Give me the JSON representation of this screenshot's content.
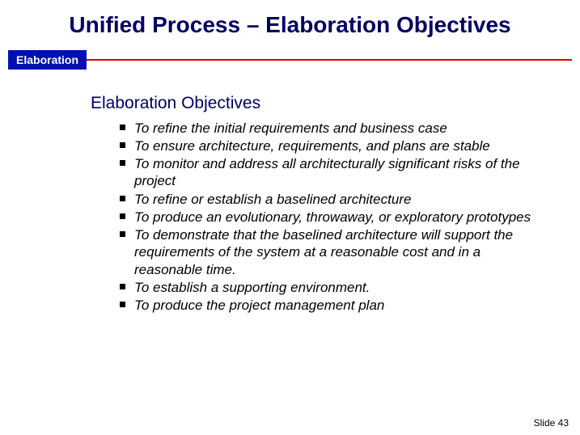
{
  "title": "Unified Process – Elaboration Objectives",
  "section_label": "Elaboration",
  "subtitle": "Elaboration Objectives",
  "objectives": [
    "To refine the initial requirements and business case",
    "To ensure architecture, requirements, and plans are stable",
    "To monitor and address all architecturally significant risks of the project",
    "To refine or establish a baselined architecture",
    "To produce an evolutionary, throwaway, or exploratory prototypes",
    "To demonstrate that the baselined architecture will support the requirements of the system at a reasonable cost and in a reasonable time.",
    "To establish a supporting environment.",
    "To produce the project management plan"
  ],
  "footer": "Slide  43",
  "colors": {
    "title_color": "#000060",
    "section_bg": "#0010b0",
    "section_fg": "#ffffff",
    "accent_line": "#e00000",
    "body_text": "#000000",
    "background": "#ffffff"
  },
  "typography": {
    "title_fontsize": 28,
    "subtitle_fontsize": 21,
    "body_fontsize": 17,
    "footer_fontsize": 12,
    "body_italic": true,
    "bullet_style": "square"
  }
}
